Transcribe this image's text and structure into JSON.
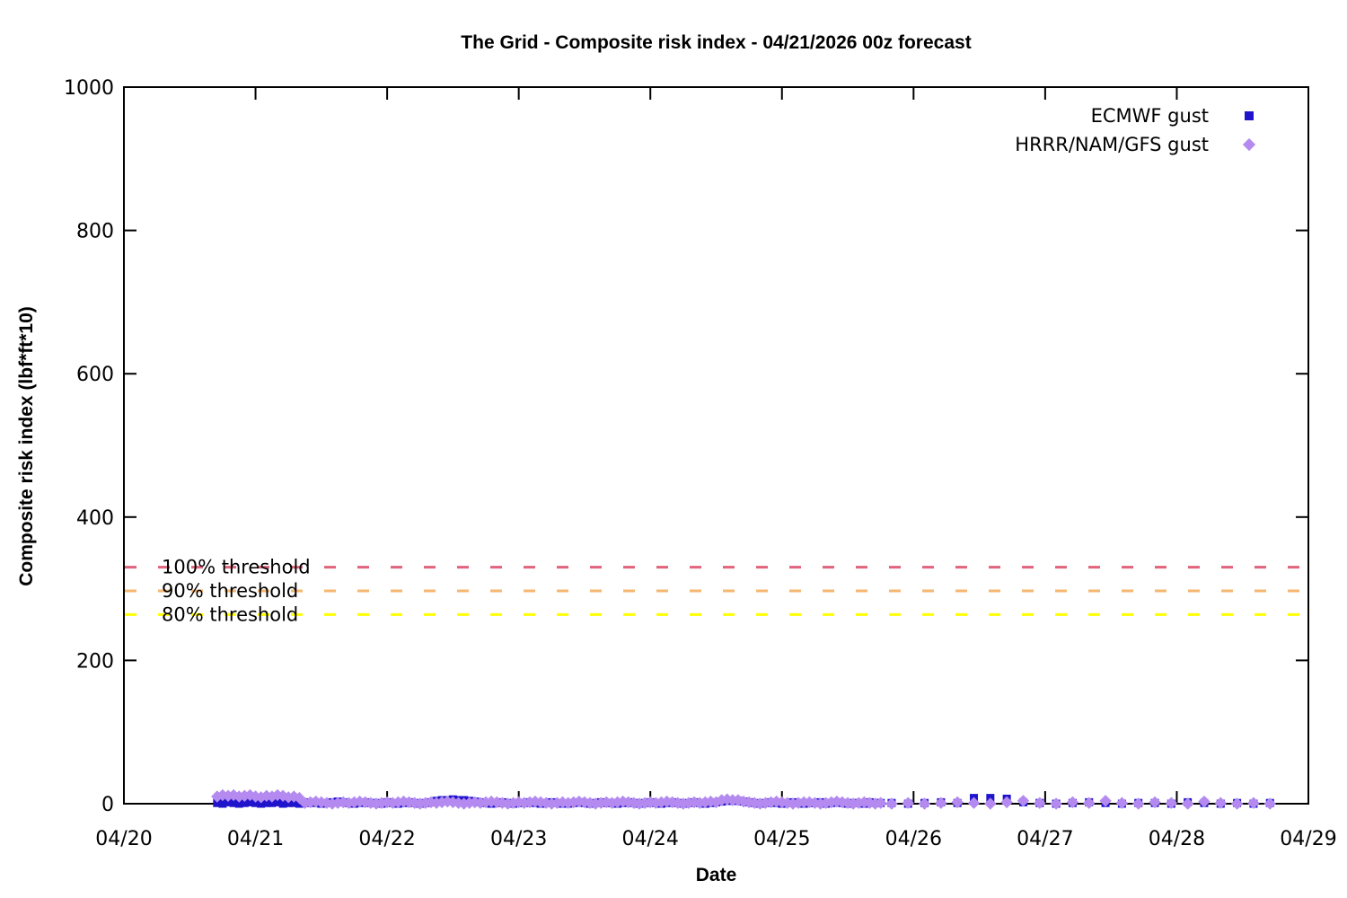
{
  "chart_data": {
    "type": "scatter",
    "title": "The Grid - Composite risk index - 04/21/2026 00z forecast",
    "xlabel": "Date",
    "ylabel": "Composite risk index (lbf*ft*10)",
    "grid": "off",
    "legend_position": "top-right-inside",
    "x_axis": {
      "range": [
        0,
        9
      ],
      "ticks_days": [
        0,
        1,
        2,
        3,
        4,
        5,
        6,
        7,
        8,
        9
      ],
      "tick_labels": [
        "04/20",
        "04/21",
        "04/22",
        "04/23",
        "04/24",
        "04/25",
        "04/26",
        "04/27",
        "04/28",
        "04/29"
      ]
    },
    "y_axis": {
      "range": [
        0,
        1000
      ],
      "ticks": [
        0,
        200,
        400,
        600,
        800,
        1000
      ]
    },
    "thresholds": [
      {
        "label": "100% threshold",
        "value": 330,
        "color": "#e0647c"
      },
      {
        "label": "90% threshold",
        "value": 297,
        "color": "#f5b771"
      },
      {
        "label": "80% threshold",
        "value": 264,
        "color": "#ffff00"
      }
    ],
    "series": [
      {
        "name": "ECMWF gust",
        "marker": "square",
        "color": "#1f14cc",
        "dense": {
          "start_hour": 17,
          "step_hours": 1,
          "y": [
            1,
            0,
            2,
            1,
            0,
            1,
            2,
            1,
            0,
            1,
            1,
            2,
            0,
            1,
            1,
            0,
            1,
            2,
            1,
            0,
            1,
            2,
            3,
            2,
            1,
            0,
            1,
            2,
            1,
            1,
            0,
            2,
            1,
            0,
            1,
            2,
            1,
            0,
            1,
            2,
            4,
            5,
            5,
            6,
            5,
            5,
            4,
            3,
            2,
            1,
            0,
            1,
            2,
            1,
            0,
            1,
            1,
            2,
            1,
            0,
            1,
            2,
            1,
            0,
            0,
            1,
            2,
            1,
            0,
            1,
            2,
            1,
            1,
            0,
            1,
            2,
            1,
            0,
            1,
            2,
            1,
            0,
            1,
            2,
            1,
            0,
            1,
            2,
            1,
            0,
            1,
            2,
            3,
            4,
            4,
            4,
            3,
            2,
            1,
            0,
            1,
            2,
            1,
            0,
            1,
            2,
            1,
            0,
            1,
            1,
            2,
            0,
            1,
            2,
            1,
            0,
            1,
            1,
            0,
            2,
            1,
            1
          ]
        },
        "sparse": {
          "start_hour": 140,
          "step_hours": 3,
          "y": [
            1,
            0,
            1,
            2,
            1,
            8,
            8,
            7,
            2,
            1,
            0,
            1,
            2,
            1,
            0,
            1,
            1,
            0,
            2,
            1,
            0,
            1,
            0,
            1
          ]
        }
      },
      {
        "name": "HRRR/NAM/GFS gust",
        "marker": "diamond",
        "color": "#b48af0",
        "dense": {
          "start_hour": 17,
          "step_hours": 1,
          "y": [
            10,
            12,
            11,
            12,
            10,
            11,
            12,
            10,
            9,
            11,
            10,
            12,
            11,
            9,
            10,
            8,
            1,
            2,
            3,
            2,
            1,
            0,
            1,
            2,
            1,
            2,
            3,
            2,
            1,
            0,
            1,
            2,
            1,
            2,
            3,
            2,
            1,
            0,
            1,
            2,
            1,
            2,
            3,
            2,
            1,
            0,
            1,
            2,
            1,
            2,
            3,
            2,
            1,
            0,
            1,
            2,
            1,
            2,
            3,
            2,
            1,
            0,
            1,
            2,
            1,
            2,
            3,
            2,
            1,
            0,
            1,
            2,
            1,
            2,
            3,
            2,
            1,
            0,
            1,
            2,
            1,
            2,
            3,
            2,
            1,
            0,
            1,
            2,
            1,
            2,
            3,
            2,
            5,
            6,
            5,
            5,
            3,
            2,
            1,
            0,
            1,
            2,
            3,
            2,
            1,
            0,
            1,
            2,
            2,
            1,
            0,
            1,
            2,
            3,
            2,
            1,
            0,
            1,
            2,
            1,
            0,
            1
          ]
        },
        "sparse": {
          "start_hour": 140,
          "step_hours": 3,
          "y": [
            0,
            1,
            0,
            1,
            2,
            1,
            0,
            2,
            4,
            1,
            0,
            2,
            1,
            4,
            1,
            0,
            2,
            1,
            0,
            3,
            1,
            0,
            1,
            0
          ]
        }
      }
    ]
  }
}
